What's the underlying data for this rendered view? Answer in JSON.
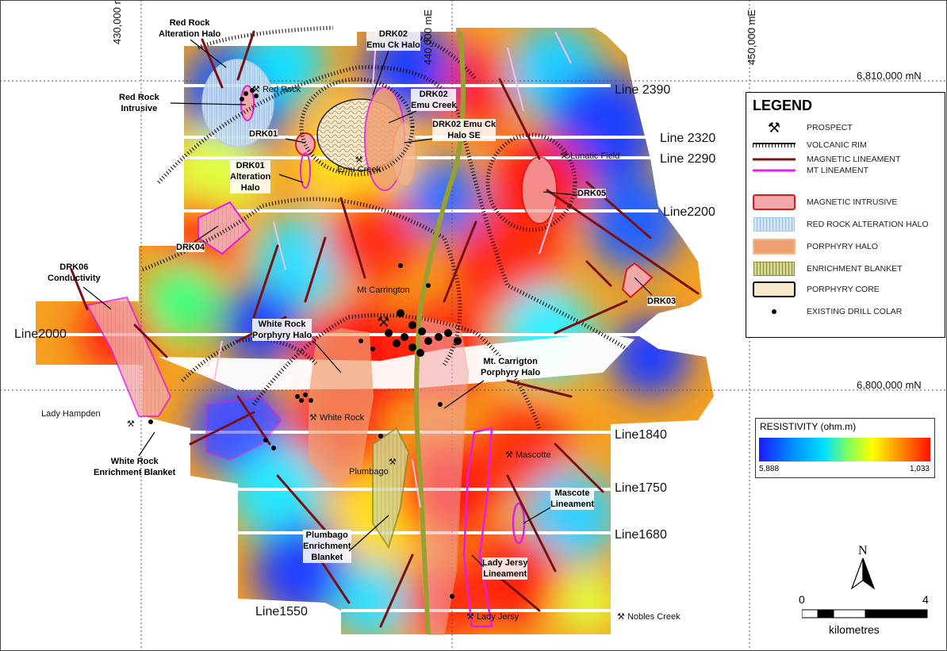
{
  "coords": {
    "easting": [
      "430,000 mE",
      "440,000 mE",
      "450,000 mE"
    ],
    "northing": [
      "6,810,000 mN",
      "6,800,000 mN"
    ]
  },
  "lines": [
    "Line 2390",
    "Line 2320",
    "Line 2290",
    "Line2200",
    "Line2000",
    "Line1840",
    "Line1750",
    "Line1680",
    "Line1550"
  ],
  "prospects": [
    "Red Rock",
    "Emu Creek",
    "Lunatic Field",
    "Mt Carrington",
    "White Rock",
    "Lady Hampden",
    "Mascotte",
    "Plumbago",
    "Lady Jersy",
    "Nobles Creek"
  ],
  "labels": {
    "red_rock_alt_1": "Red Rock",
    "red_rock_alt_2": "Alteration Halo",
    "red_rock_int_1": "Red Rock",
    "red_rock_int_2": "Intrusive",
    "drk02a_1": "DRK02",
    "drk02a_2": "Emu Ck Halo",
    "drk02b_1": "DRK02",
    "drk02b_2": "Emu Creek",
    "drk02c_1": "DRK02 Emu Ck",
    "drk02c_2": "Halo SE",
    "drk01": "DRK01",
    "drk01alt_1": "DRK01",
    "drk01alt_2": "Alteration",
    "drk01alt_3": "Halo",
    "drk05": "DRK05",
    "drk04": "DRK04",
    "drk06_1": "DRK06",
    "drk06_2": "Conductivity",
    "drk03": "DRK03",
    "wr_halo_1": "White Rock",
    "wr_halo_2": "Porphyry Halo",
    "mc_halo_1": "Mt. Carrigton",
    "mc_halo_2": "Porphyry Halo",
    "wr_blanket_1": "White Rock",
    "wr_blanket_2": "Enrichment Blanket",
    "plum_1": "Plumbago",
    "plum_2": "Enrichment",
    "plum_3": "Blanket",
    "mascote_1": "Mascote",
    "mascote_2": "Lineament",
    "ladyj_1": "Lady Jersy",
    "ladyj_2": "Lineament"
  },
  "legend": {
    "title": "LEGEND",
    "items": [
      "PROSPECT",
      "VOLCANIC RIM",
      "MAGNETIC LINEAMENT",
      "MT LINEAMENT",
      "MAGNETIC INTRUSIVE",
      "RED ROCK ALTERATION HALO",
      "PORPHYRY HALO",
      "ENRICHMENT BLANKET",
      "PORPHYRY CORE",
      "EXISTING DRILL COLAR"
    ]
  },
  "resistivity": {
    "title": "RESISTIVITY (ohm.m)",
    "min": "5,888",
    "max": "1,033"
  },
  "scale": {
    "start": "0",
    "end": "4",
    "unit": "kilometres"
  },
  "colors": {
    "magnetic_lineament": "#7a1010",
    "mt_lineament": "#e020e0",
    "magnetic_intrusive": "#d81b1b",
    "porphyry_halo": "#f0a070",
    "enrichment_blanket": "#8a8a30",
    "drill": "#000000"
  },
  "north": "N"
}
